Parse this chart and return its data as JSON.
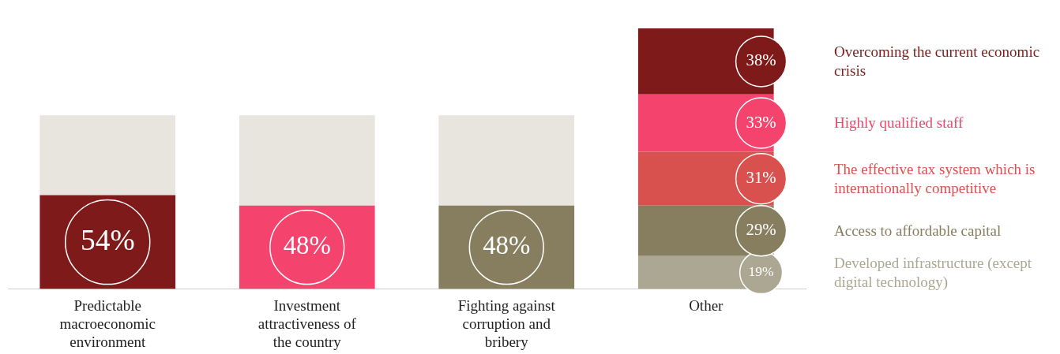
{
  "chart_data": {
    "type": "bar",
    "stacked": true,
    "categories": [
      "Predictable macroeconomic environment",
      "Investment attractiveness of the country",
      "Fighting against corruption and bribery",
      "Other"
    ],
    "series": [
      {
        "colors": [
          "#7f1a1a",
          "#f4436c",
          "#877d5f",
          null
        ],
        "values": [
          54,
          48,
          48,
          null
        ],
        "value_labels": [
          "54%",
          "48%",
          "48%",
          null
        ]
      },
      {
        "color": "#e8e5df",
        "values": [
          46,
          52,
          52,
          null
        ]
      },
      {
        "name": "Developed infrastructure (except digital technology)",
        "color": "#aba793",
        "values": [
          null,
          null,
          null,
          19
        ],
        "value_labels": [
          null,
          null,
          null,
          "19%"
        ]
      },
      {
        "name": "Access to affordable capital",
        "color": "#877d5f",
        "values": [
          null,
          null,
          null,
          29
        ],
        "value_labels": [
          null,
          null,
          null,
          "29%"
        ]
      },
      {
        "name": "The effective tax system which is internationally competitive",
        "color": "#d9514e",
        "values": [
          null,
          null,
          null,
          31
        ],
        "value_labels": [
          null,
          null,
          null,
          "31%"
        ]
      },
      {
        "name": "Highly qualified staff",
        "color": "#f4436c",
        "values": [
          null,
          null,
          null,
          33
        ],
        "value_labels": [
          null,
          null,
          null,
          "33%"
        ]
      },
      {
        "name": "Overcoming the current economic crisis",
        "color": "#7f1a1a",
        "values": [
          null,
          null,
          null,
          38
        ],
        "value_labels": [
          null,
          null,
          null,
          "38%"
        ]
      }
    ],
    "ylim": [
      0,
      150
    ],
    "tick_labels": "x",
    "grid": false,
    "legend": "right"
  }
}
